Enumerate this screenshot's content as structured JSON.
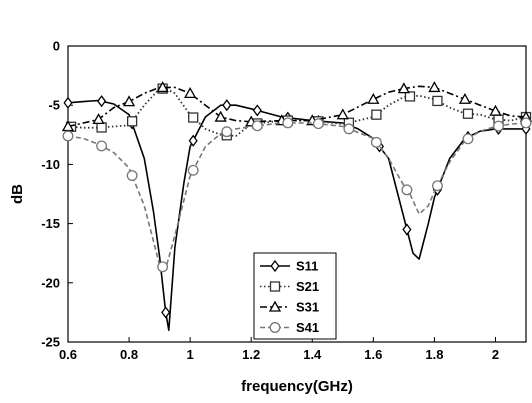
{
  "chart_data": {
    "type": "line",
    "xlabel": "frequency(GHz)",
    "ylabel": "dB",
    "xlim": [
      0.6,
      2.1
    ],
    "ylim": [
      -25,
      0
    ],
    "xticks": [
      "0.6",
      "0.8",
      "1",
      "1.2",
      "1.4",
      "1.6",
      "1.8",
      "2"
    ],
    "yticks": [
      "0",
      "-5",
      "-10",
      "-15",
      "-20",
      "-25"
    ],
    "grid": false,
    "legend_position": "bottom-center",
    "series": [
      {
        "name": "S11",
        "marker": "diamond",
        "dash": "solid",
        "color": "#000000",
        "x": [
          0.6,
          0.65,
          0.7,
          0.75,
          0.8,
          0.85,
          0.88,
          0.9,
          0.92,
          0.93,
          0.95,
          0.98,
          1.0,
          1.05,
          1.1,
          1.15,
          1.2,
          1.3,
          1.4,
          1.5,
          1.55,
          1.6,
          1.65,
          1.7,
          1.73,
          1.75,
          1.78,
          1.8,
          1.85,
          1.9,
          1.95,
          2.0,
          2.05,
          2.1
        ],
        "y": [
          -4.8,
          -4.7,
          -4.6,
          -4.9,
          -5.8,
          -9.5,
          -14.0,
          -17.8,
          -22.5,
          -24.0,
          -17.0,
          -11.5,
          -8.5,
          -6.0,
          -5.0,
          -5.0,
          -5.3,
          -6.0,
          -6.3,
          -6.5,
          -7.0,
          -7.8,
          -9.5,
          -14.5,
          -17.5,
          -18.0,
          -15.0,
          -12.8,
          -9.5,
          -7.8,
          -7.2,
          -7.0,
          -7.0,
          -7.0
        ]
      },
      {
        "name": "S21",
        "marker": "square",
        "dash": "dotted",
        "color": "#333333",
        "x": [
          0.6,
          0.65,
          0.7,
          0.75,
          0.8,
          0.85,
          0.9,
          0.92,
          0.95,
          1.0,
          1.05,
          1.1,
          1.15,
          1.2,
          1.3,
          1.4,
          1.5,
          1.6,
          1.65,
          1.7,
          1.75,
          1.8,
          1.85,
          1.9,
          1.95,
          2.0,
          2.05,
          2.1
        ],
        "y": [
          -6.8,
          -6.9,
          -6.9,
          -6.8,
          -6.7,
          -5.0,
          -3.6,
          -3.6,
          -4.0,
          -5.8,
          -7.0,
          -7.5,
          -7.6,
          -6.6,
          -6.3,
          -6.3,
          -6.6,
          -6.0,
          -5.0,
          -4.3,
          -4.2,
          -4.5,
          -5.2,
          -5.7,
          -5.8,
          -6.2,
          -6.3,
          -6.0
        ]
      },
      {
        "name": "S31",
        "marker": "triangle",
        "dash": "dashdot",
        "color": "#000000",
        "x": [
          0.6,
          0.65,
          0.7,
          0.75,
          0.8,
          0.85,
          0.9,
          0.95,
          1.0,
          1.05,
          1.1,
          1.15,
          1.2,
          1.3,
          1.4,
          1.5,
          1.6,
          1.65,
          1.7,
          1.75,
          1.8,
          1.85,
          1.9,
          1.95,
          2.0,
          2.05,
          2.1
        ],
        "y": [
          -6.8,
          -6.5,
          -6.2,
          -5.2,
          -4.7,
          -4.0,
          -3.5,
          -3.5,
          -4.0,
          -5.0,
          -6.0,
          -6.3,
          -6.4,
          -6.3,
          -6.3,
          -5.8,
          -4.5,
          -3.9,
          -3.6,
          -3.4,
          -3.5,
          -4.0,
          -4.5,
          -5.0,
          -5.5,
          -5.9,
          -6.0
        ]
      },
      {
        "name": "S41",
        "marker": "circle",
        "dash": "dashed",
        "color": "#777777",
        "x": [
          0.6,
          0.65,
          0.7,
          0.75,
          0.8,
          0.85,
          0.88,
          0.9,
          0.92,
          0.95,
          1.0,
          1.05,
          1.1,
          1.15,
          1.2,
          1.3,
          1.4,
          1.5,
          1.6,
          1.65,
          1.7,
          1.72,
          1.75,
          1.78,
          1.8,
          1.85,
          1.9,
          1.95,
          2.0,
          2.05,
          2.1
        ],
        "y": [
          -7.6,
          -7.8,
          -8.3,
          -9.0,
          -10.3,
          -13.5,
          -16.5,
          -18.5,
          -18.8,
          -16.0,
          -11.0,
          -8.5,
          -7.4,
          -7.0,
          -6.8,
          -6.5,
          -6.5,
          -6.8,
          -7.8,
          -9.5,
          -11.8,
          -12.5,
          -14.2,
          -13.5,
          -12.3,
          -9.8,
          -8.0,
          -7.2,
          -6.8,
          -6.6,
          -6.5
        ]
      }
    ]
  }
}
